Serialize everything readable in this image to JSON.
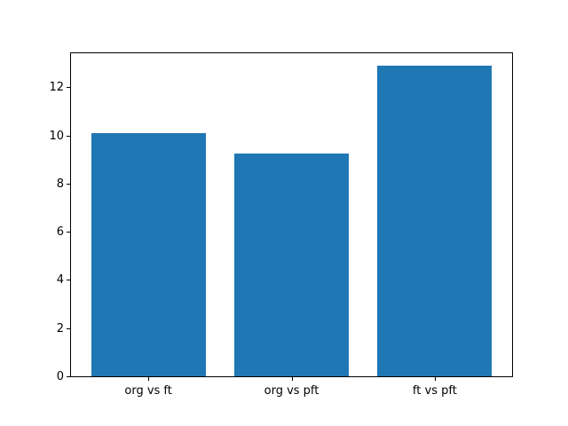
{
  "figure": {
    "background": "#ffffff"
  },
  "chart_data": {
    "type": "bar",
    "title": "",
    "xlabel": "",
    "ylabel": "",
    "categories": [
      "org vs ft",
      "org vs pft",
      "ft vs pft"
    ],
    "values": [
      10.1,
      9.25,
      12.9
    ],
    "ylim": [
      0,
      13.45
    ],
    "yticks": [
      0,
      2,
      4,
      6,
      8,
      10,
      12
    ],
    "bar_color": "#1f77b4",
    "axis_color": "#000000",
    "grid": false,
    "legend_position": "none",
    "bar_width_fraction": 0.8
  }
}
